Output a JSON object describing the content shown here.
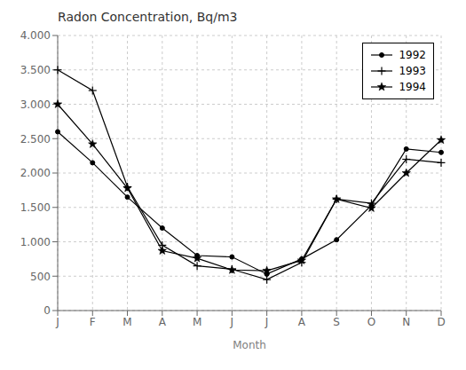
{
  "chart_data": {
    "type": "line",
    "title": "Radon Concentration, Bq/m3",
    "x_label": "Month",
    "categories": [
      "J",
      "F",
      "M",
      "A",
      "M",
      "J",
      "J",
      "A",
      "S",
      "O",
      "N",
      "D"
    ],
    "series": [
      {
        "name": "1992",
        "color": "#000000",
        "marker": "point",
        "line_style": "solid",
        "values": [
          2600,
          2150,
          1650,
          1200,
          800,
          780,
          530,
          750,
          1030,
          1530,
          2350,
          2300
        ]
      },
      {
        "name": "1993",
        "color": "#000000",
        "marker": "plus",
        "line_style": "solid",
        "values": [
          3500,
          3200,
          1800,
          950,
          650,
          600,
          450,
          700,
          1620,
          1560,
          2200,
          2150
        ]
      },
      {
        "name": "1994",
        "color": "#000000",
        "marker": "star",
        "line_style": "solid",
        "values": [
          3000,
          2420,
          1780,
          870,
          760,
          590,
          580,
          730,
          1620,
          1490,
          2000,
          2480
        ]
      }
    ],
    "ylim": [
      0,
      4000
    ],
    "yticks": [
      0,
      500,
      {
        "value": 1000,
        "label": "1.000"
      },
      {
        "value": 1500,
        "label": "1.500"
      },
      {
        "value": 2000,
        "label": "2.000"
      },
      {
        "value": 2500,
        "label": "2.500"
      },
      {
        "value": 3000,
        "label": "3.000"
      },
      {
        "value": 3500,
        "label": "3.500"
      },
      {
        "value": 4000,
        "label": "4.000"
      }
    ],
    "grid": true,
    "legend": "upper right"
  }
}
